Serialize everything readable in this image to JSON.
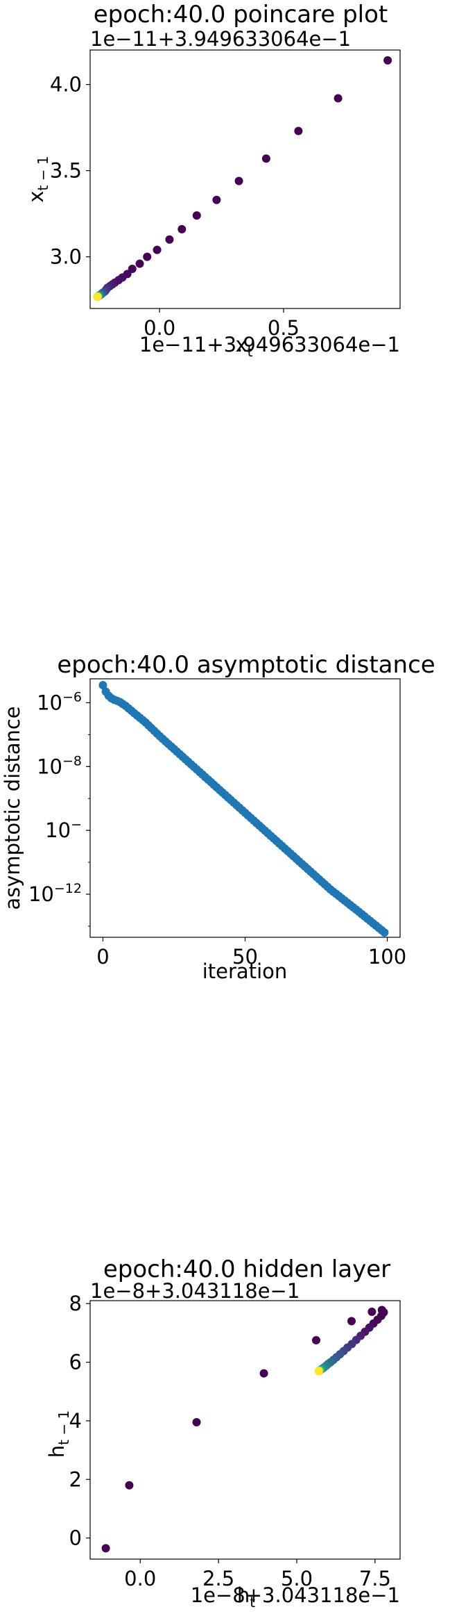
{
  "chart_data": [
    {
      "type": "scatter",
      "title": "epoch:40.0 poincare plot",
      "xlabel": "x_t",
      "ylabel": "x_{t-1}",
      "x_offset_label": "1e−11+3.949633064e−1",
      "y_offset_label": "1e−11+3.949633064e−1",
      "x_ticks": [
        "0.0",
        "0.5"
      ],
      "y_ticks": [
        "3.0",
        "3.5",
        "4.0"
      ],
      "xlim": [
        -0.28,
        0.97
      ],
      "ylim": [
        2.7,
        4.2
      ],
      "colormap": "viridis",
      "note_offset": "values are the scaled offsets shown on the axes",
      "points": [
        {
          "x": 0.92,
          "y": 4.14,
          "c": "#440154"
        },
        {
          "x": 0.72,
          "y": 3.92,
          "c": "#440154"
        },
        {
          "x": 0.56,
          "y": 3.73,
          "c": "#440154"
        },
        {
          "x": 0.43,
          "y": 3.57,
          "c": "#440154"
        },
        {
          "x": 0.32,
          "y": 3.44,
          "c": "#440154"
        },
        {
          "x": 0.23,
          "y": 3.33,
          "c": "#440154"
        },
        {
          "x": 0.15,
          "y": 3.24,
          "c": "#440154"
        },
        {
          "x": 0.09,
          "y": 3.16,
          "c": "#440154"
        },
        {
          "x": 0.04,
          "y": 3.1,
          "c": "#440154"
        },
        {
          "x": -0.01,
          "y": 3.04,
          "c": "#440154"
        },
        {
          "x": -0.05,
          "y": 3.0,
          "c": "#440154"
        },
        {
          "x": -0.08,
          "y": 2.96,
          "c": "#440154"
        },
        {
          "x": -0.11,
          "y": 2.93,
          "c": "#450559"
        },
        {
          "x": -0.13,
          "y": 2.9,
          "c": "#46085c"
        },
        {
          "x": -0.15,
          "y": 2.88,
          "c": "#470c5f"
        },
        {
          "x": -0.165,
          "y": 2.865,
          "c": "#471063"
        },
        {
          "x": -0.18,
          "y": 2.85,
          "c": "#481467"
        },
        {
          "x": -0.19,
          "y": 2.84,
          "c": "#481a6c"
        },
        {
          "x": -0.2,
          "y": 2.83,
          "c": "#482173"
        },
        {
          "x": -0.21,
          "y": 2.82,
          "c": "#472a7a"
        },
        {
          "x": -0.215,
          "y": 2.81,
          "c": "#46337f"
        },
        {
          "x": -0.22,
          "y": 2.8,
          "c": "#443a83"
        },
        {
          "x": -0.225,
          "y": 2.795,
          "c": "#3f4788"
        },
        {
          "x": -0.23,
          "y": 2.79,
          "c": "#3b518b"
        },
        {
          "x": -0.233,
          "y": 2.785,
          "c": "#375a8c"
        },
        {
          "x": -0.236,
          "y": 2.782,
          "c": "#33638d"
        },
        {
          "x": -0.238,
          "y": 2.78,
          "c": "#2f6c8e"
        },
        {
          "x": -0.24,
          "y": 2.778,
          "c": "#2c728e"
        },
        {
          "x": -0.242,
          "y": 2.776,
          "c": "#287c8e"
        },
        {
          "x": -0.243,
          "y": 2.775,
          "c": "#25858e"
        },
        {
          "x": -0.244,
          "y": 2.774,
          "c": "#21918c"
        },
        {
          "x": -0.245,
          "y": 2.773,
          "c": "#1f9a8a"
        },
        {
          "x": -0.246,
          "y": 2.772,
          "c": "#21a685"
        },
        {
          "x": -0.247,
          "y": 2.771,
          "c": "#29af7f"
        },
        {
          "x": -0.248,
          "y": 2.77,
          "c": "#3bbb75"
        },
        {
          "x": -0.249,
          "y": 2.769,
          "c": "#52c569"
        },
        {
          "x": -0.25,
          "y": 2.768,
          "c": "#6ccd5a"
        },
        {
          "x": -0.25,
          "y": 2.768,
          "c": "#95d840"
        },
        {
          "x": -0.25,
          "y": 2.768,
          "c": "#c2df23"
        },
        {
          "x": -0.25,
          "y": 2.768,
          "c": "#fde725"
        }
      ]
    },
    {
      "type": "scatter",
      "title": "epoch:40.0 asymptotic distance",
      "xlabel": "iteration",
      "ylabel": "asymptotic distance",
      "yscale": "log",
      "x_ticks": [
        "0",
        "50",
        "100"
      ],
      "y_ticks": [
        "10−6",
        "10−8",
        "10−10",
        "10−12"
      ],
      "xlim": [
        -4.5,
        104.5
      ],
      "ylim_log10": [
        -13.35,
        -5.25
      ],
      "color": "#1f77b4",
      "n_points": 100,
      "points_log10": [
        {
          "x": 0,
          "y": -5.45
        },
        {
          "x": 1,
          "y": -5.65
        },
        {
          "x": 2,
          "y": -5.78
        },
        {
          "x": 3,
          "y": -5.86
        },
        {
          "x": 4,
          "y": -5.91
        },
        {
          "x": 5,
          "y": -5.94
        },
        {
          "x": 6,
          "y": -5.98
        },
        {
          "x": 8,
          "y": -6.1
        },
        {
          "x": 10,
          "y": -6.25
        },
        {
          "x": 15,
          "y": -6.62
        },
        {
          "x": 20,
          "y": -7.05
        },
        {
          "x": 30,
          "y": -7.85
        },
        {
          "x": 40,
          "y": -8.65
        },
        {
          "x": 50,
          "y": -9.45
        },
        {
          "x": 60,
          "y": -10.25
        },
        {
          "x": 70,
          "y": -11.05
        },
        {
          "x": 80,
          "y": -11.85
        },
        {
          "x": 90,
          "y": -12.55
        },
        {
          "x": 99,
          "y": -13.2
        }
      ]
    },
    {
      "type": "scatter",
      "title": "epoch:40.0 hidden layer",
      "xlabel": "h_t",
      "ylabel": "h_{t-1}",
      "x_offset_label": "1e−8+3.043118e−1",
      "y_offset_label": "1e−8+3.043118e−1",
      "x_ticks": [
        "0.0",
        "2.5",
        "5.0",
        "7.5"
      ],
      "y_ticks": [
        "0",
        "2",
        "4",
        "6",
        "8"
      ],
      "xlim": [
        -1.6,
        8.3
      ],
      "ylim": [
        -0.72,
        8.1
      ],
      "colormap": "viridis",
      "points": [
        {
          "x": -1.1,
          "y": -0.35,
          "c": "#440154"
        },
        {
          "x": -0.35,
          "y": 1.8,
          "c": "#440154"
        },
        {
          "x": 1.8,
          "y": 3.95,
          "c": "#440154"
        },
        {
          "x": 3.95,
          "y": 5.62,
          "c": "#440154"
        },
        {
          "x": 5.62,
          "y": 6.75,
          "c": "#440154"
        },
        {
          "x": 6.75,
          "y": 7.4,
          "c": "#440154"
        },
        {
          "x": 7.4,
          "y": 7.72,
          "c": "#440154"
        },
        {
          "x": 7.72,
          "y": 7.78,
          "c": "#440154"
        },
        {
          "x": 7.78,
          "y": 7.7,
          "c": "#440154"
        },
        {
          "x": 7.7,
          "y": 7.58,
          "c": "#440154"
        },
        {
          "x": 7.58,
          "y": 7.45,
          "c": "#450559"
        },
        {
          "x": 7.45,
          "y": 7.32,
          "c": "#46085c"
        },
        {
          "x": 7.32,
          "y": 7.18,
          "c": "#471063"
        },
        {
          "x": 7.18,
          "y": 7.04,
          "c": "#481467"
        },
        {
          "x": 7.04,
          "y": 6.9,
          "c": "#482173"
        },
        {
          "x": 6.9,
          "y": 6.76,
          "c": "#472a7a"
        },
        {
          "x": 6.76,
          "y": 6.62,
          "c": "#46337f"
        },
        {
          "x": 6.62,
          "y": 6.5,
          "c": "#443a83"
        },
        {
          "x": 6.5,
          "y": 6.38,
          "c": "#3f4788"
        },
        {
          "x": 6.38,
          "y": 6.27,
          "c": "#3b518b"
        },
        {
          "x": 6.27,
          "y": 6.17,
          "c": "#375a8c"
        },
        {
          "x": 6.17,
          "y": 6.08,
          "c": "#33638d"
        },
        {
          "x": 6.08,
          "y": 6.0,
          "c": "#2f6c8e"
        },
        {
          "x": 6.0,
          "y": 5.94,
          "c": "#2c728e"
        },
        {
          "x": 5.94,
          "y": 5.88,
          "c": "#287c8e"
        },
        {
          "x": 5.88,
          "y": 5.83,
          "c": "#25858e"
        },
        {
          "x": 5.83,
          "y": 5.79,
          "c": "#21918c"
        },
        {
          "x": 5.79,
          "y": 5.76,
          "c": "#1f9a8a"
        },
        {
          "x": 5.76,
          "y": 5.74,
          "c": "#21a685"
        },
        {
          "x": 5.74,
          "y": 5.72,
          "c": "#3bbb75"
        },
        {
          "x": 5.72,
          "y": 5.71,
          "c": "#6ccd5a"
        },
        {
          "x": 5.71,
          "y": 5.7,
          "c": "#b5de2b"
        },
        {
          "x": 5.7,
          "y": 5.7,
          "c": "#fde725"
        }
      ]
    }
  ]
}
